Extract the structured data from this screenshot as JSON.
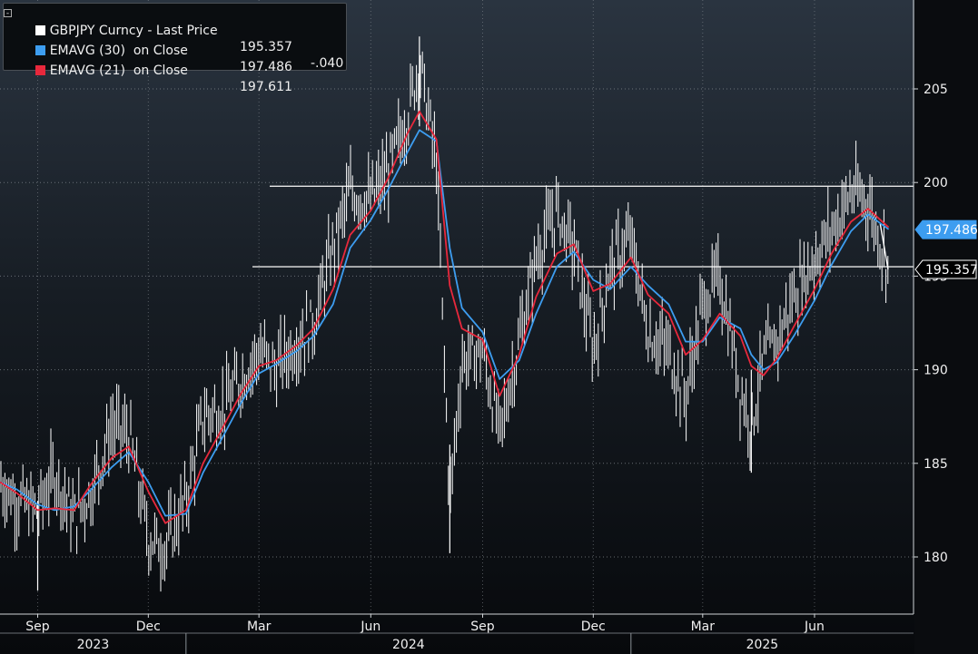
{
  "legend": {
    "rows": [
      {
        "label": "GBPJPY Curncy - Last Price",
        "value": "195.357",
        "change": "-.040",
        "color": "#ffffff"
      },
      {
        "label": "EMAVG (30)  on Close",
        "value": "197.486",
        "change": "",
        "color": "#3d9df0"
      },
      {
        "label": "EMAVG (21)  on Close",
        "value": "197.611",
        "change": "",
        "color": "#e8283c"
      }
    ]
  },
  "chart_data": {
    "type": "line",
    "title": "GBPJPY Curncy - Last Price",
    "xlabel": "",
    "ylabel": "",
    "ylim": [
      177,
      210
    ],
    "y_ticks": [
      180,
      185,
      190,
      195,
      200,
      205
    ],
    "x_month_labels": [
      "Sep",
      "Dec",
      "Mar",
      "Jun",
      "Sep",
      "Dec",
      "Mar",
      "Jun"
    ],
    "x_year_labels": [
      "2023",
      "2024",
      "2025"
    ],
    "grid": true,
    "legend_position": "top-left",
    "price_tag": "195.357",
    "ema30_tag": "197.486",
    "horizontal_levels": [
      199.8,
      195.5
    ],
    "series": [
      {
        "name": "GBPJPY Curncy - Last Price",
        "color": "#ffffff",
        "x": [
          "2023-08-01",
          "2023-08-15",
          "2023-09-01",
          "2023-09-15",
          "2023-10-01",
          "2023-10-15",
          "2023-11-01",
          "2023-11-15",
          "2023-12-01",
          "2023-12-15",
          "2024-01-01",
          "2024-01-15",
          "2024-02-01",
          "2024-02-15",
          "2024-03-01",
          "2024-03-15",
          "2024-04-01",
          "2024-04-15",
          "2024-05-01",
          "2024-05-15",
          "2024-06-01",
          "2024-06-15",
          "2024-07-01",
          "2024-07-11",
          "2024-07-25",
          "2024-08-05",
          "2024-08-15",
          "2024-09-01",
          "2024-09-15",
          "2024-10-01",
          "2024-10-15",
          "2024-11-01",
          "2024-11-15",
          "2024-12-01",
          "2024-12-15",
          "2025-01-01",
          "2025-01-15",
          "2025-02-01",
          "2025-02-15",
          "2025-03-01",
          "2025-03-15",
          "2025-04-01",
          "2025-04-10",
          "2025-04-20",
          "2025-05-01",
          "2025-05-15",
          "2025-06-01",
          "2025-06-15",
          "2025-07-01",
          "2025-07-15",
          "2025-08-01"
        ],
        "values": [
          184.0,
          183.0,
          182.5,
          184.5,
          182.0,
          183.5,
          187.0,
          186.5,
          181.0,
          180.5,
          183.0,
          187.5,
          188.0,
          189.5,
          191.0,
          190.0,
          191.5,
          192.5,
          196.5,
          199.5,
          199.0,
          200.5,
          203.5,
          206.5,
          201.0,
          183.0,
          190.5,
          191.0,
          186.5,
          191.5,
          196.0,
          198.5,
          196.5,
          191.0,
          195.5,
          197.0,
          192.0,
          191.0,
          188.5,
          193.5,
          195.0,
          189.0,
          187.0,
          190.5,
          191.5,
          194.0,
          196.0,
          197.5,
          199.5,
          199.0,
          195.4
        ]
      },
      {
        "name": "EMAVG (30)  on Close",
        "color": "#3d9df0",
        "x": [
          "2023-08-01",
          "2023-08-15",
          "2023-09-01",
          "2023-09-15",
          "2023-10-01",
          "2023-10-15",
          "2023-11-01",
          "2023-11-15",
          "2023-12-01",
          "2023-12-15",
          "2024-01-01",
          "2024-01-15",
          "2024-02-01",
          "2024-02-15",
          "2024-03-01",
          "2024-03-15",
          "2024-04-01",
          "2024-04-15",
          "2024-05-01",
          "2024-05-15",
          "2024-06-01",
          "2024-06-15",
          "2024-07-01",
          "2024-07-11",
          "2024-07-25",
          "2024-08-05",
          "2024-08-15",
          "2024-09-01",
          "2024-09-15",
          "2024-10-01",
          "2024-10-15",
          "2024-11-01",
          "2024-11-15",
          "2024-12-01",
          "2024-12-15",
          "2025-01-01",
          "2025-01-15",
          "2025-02-01",
          "2025-02-15",
          "2025-03-01",
          "2025-03-15",
          "2025-04-01",
          "2025-04-10",
          "2025-04-20",
          "2025-05-01",
          "2025-05-15",
          "2025-06-01",
          "2025-06-15",
          "2025-07-01",
          "2025-07-15",
          "2025-08-01"
        ],
        "values": [
          184.0,
          183.6,
          182.8,
          182.5,
          182.7,
          183.6,
          184.8,
          185.6,
          184.0,
          182.2,
          182.3,
          184.5,
          186.5,
          188.2,
          189.8,
          190.3,
          191.0,
          191.8,
          193.5,
          196.5,
          198.0,
          199.6,
          201.6,
          202.8,
          202.2,
          196.5,
          193.3,
          192.0,
          189.5,
          190.5,
          193.0,
          195.5,
          196.3,
          194.8,
          194.3,
          195.5,
          194.5,
          193.5,
          191.5,
          191.5,
          192.8,
          192.2,
          190.8,
          190.0,
          190.4,
          191.8,
          193.7,
          195.6,
          197.4,
          198.3,
          197.5
        ]
      },
      {
        "name": "EMAVG (21)  on Close",
        "color": "#e8283c",
        "x": [
          "2023-08-01",
          "2023-08-15",
          "2023-09-01",
          "2023-09-15",
          "2023-10-01",
          "2023-10-15",
          "2023-11-01",
          "2023-11-15",
          "2023-12-01",
          "2023-12-15",
          "2024-01-01",
          "2024-01-15",
          "2024-02-01",
          "2024-02-15",
          "2024-03-01",
          "2024-03-15",
          "2024-04-01",
          "2024-04-15",
          "2024-05-01",
          "2024-05-15",
          "2024-06-01",
          "2024-06-15",
          "2024-07-01",
          "2024-07-11",
          "2024-07-25",
          "2024-08-05",
          "2024-08-15",
          "2024-09-01",
          "2024-09-15",
          "2024-10-01",
          "2024-10-15",
          "2024-11-01",
          "2024-11-15",
          "2024-12-01",
          "2024-12-15",
          "2025-01-01",
          "2025-01-15",
          "2025-02-01",
          "2025-02-15",
          "2025-03-01",
          "2025-03-15",
          "2025-04-01",
          "2025-04-10",
          "2025-04-20",
          "2025-05-01",
          "2025-05-15",
          "2025-06-01",
          "2025-06-15",
          "2025-07-01",
          "2025-07-15",
          "2025-08-01"
        ],
        "values": [
          184.0,
          183.4,
          182.5,
          182.6,
          182.5,
          183.9,
          185.3,
          185.9,
          183.5,
          181.8,
          182.5,
          185.0,
          187.0,
          188.7,
          190.2,
          190.5,
          191.3,
          192.2,
          194.3,
          197.2,
          198.5,
          200.2,
          202.6,
          203.8,
          202.3,
          194.5,
          192.2,
          191.6,
          188.6,
          190.8,
          193.9,
          196.2,
          196.7,
          194.2,
          194.6,
          196.0,
          194.0,
          193.0,
          190.8,
          191.6,
          193.0,
          191.8,
          190.2,
          189.7,
          190.6,
          192.3,
          194.3,
          196.2,
          197.9,
          198.6,
          197.6
        ]
      }
    ]
  }
}
